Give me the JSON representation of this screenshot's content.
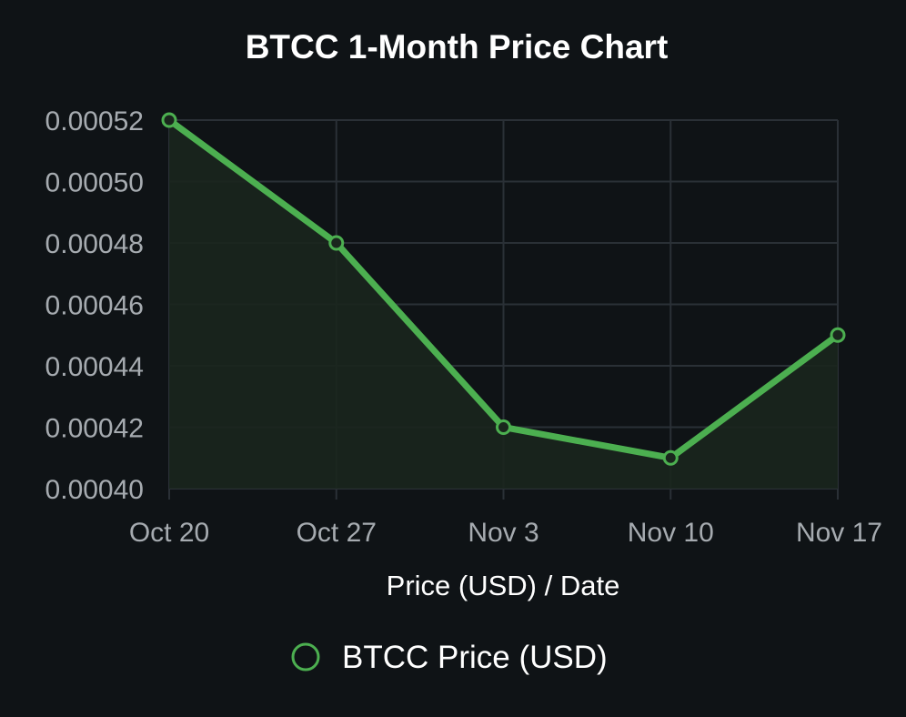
{
  "chart_data": {
    "type": "line",
    "title": "BTCC 1-Month Price Chart",
    "xlabel": "Price (USD) / Date",
    "ylabel": "",
    "categories": [
      "Oct 20",
      "Oct 27",
      "Nov 3",
      "Nov 10",
      "Nov 17"
    ],
    "series": [
      {
        "name": "BTCC Price (USD)",
        "values": [
          0.00052,
          0.00048,
          0.00042,
          0.00041,
          0.00045
        ],
        "color": "#4caf50"
      }
    ],
    "ylim": [
      0.0004,
      0.00052
    ],
    "y_ticks": [
      "0.00052",
      "0.00050",
      "0.00048",
      "0.00046",
      "0.00044",
      "0.00042",
      "0.00040"
    ],
    "y_tick_values": [
      0.00052,
      0.0005,
      0.00048,
      0.00046,
      0.00044,
      0.00042,
      0.0004
    ],
    "grid": true,
    "legend_position": "bottom",
    "colors": {
      "background": "#0f1316",
      "grid": "#2a3036",
      "line": "#4caf50",
      "area_fill": "#1a261d",
      "tick_text": "#a6abb0",
      "title_text": "#ffffff"
    }
  }
}
